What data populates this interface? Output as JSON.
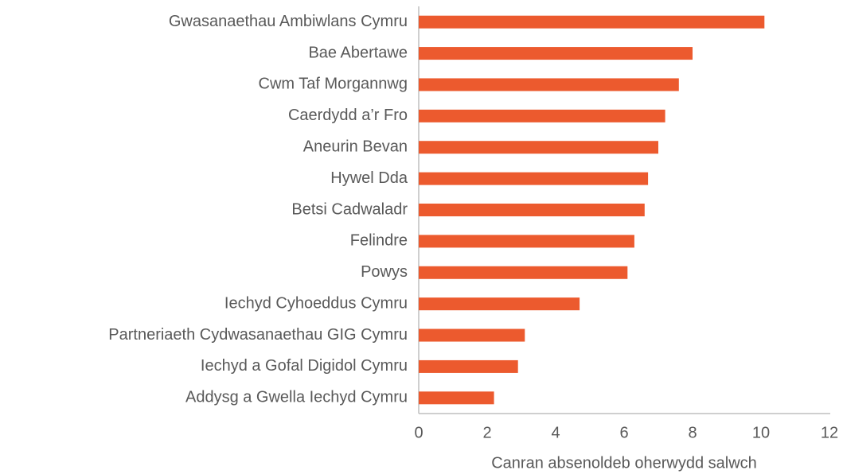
{
  "chart_data": {
    "type": "bar",
    "orientation": "horizontal",
    "xlabel": "Canran absenoldeb oherwydd salwch",
    "categories": [
      "Gwasanaethau Ambiwlans Cymru",
      "Bae Abertawe",
      "Cwm Taf Morgannwg",
      "Caerdydd a’r Fro",
      "Aneurin Bevan",
      "Hywel Dda",
      "Betsi Cadwaladr",
      "Felindre",
      "Powys",
      "Iechyd Cyhoeddus Cymru",
      "Partneriaeth Cydwasanaethau GIG Cymru",
      "Iechyd a Gofal Digidol Cymru",
      "Addysg a Gwella Iechyd Cymru"
    ],
    "values": [
      10.1,
      8.0,
      7.6,
      7.2,
      7.0,
      6.7,
      6.6,
      6.3,
      6.1,
      4.7,
      3.1,
      2.9,
      2.2
    ],
    "color": "#ec5a2e",
    "xlim": [
      0,
      12
    ],
    "xticks": [
      0,
      2,
      4,
      6,
      8,
      10,
      12
    ],
    "grid": false
  }
}
